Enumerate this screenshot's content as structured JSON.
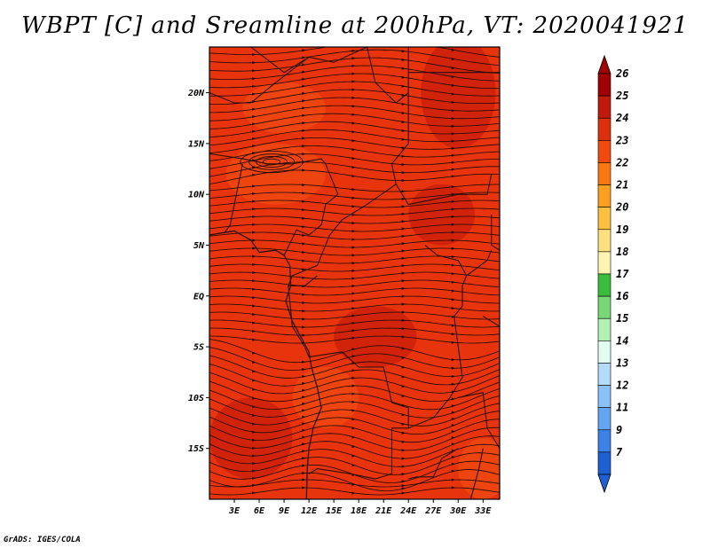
{
  "title": "WBPT [C] and Sreamline at 200hPa, VT: 2020041921",
  "credit": "GrADS: IGES/COLA",
  "map": {
    "lon_range": [
      0,
      35
    ],
    "lat_range": [
      -20,
      24.5
    ],
    "lat_ticks": [
      {
        "value": 20,
        "label": "20N"
      },
      {
        "value": 15,
        "label": "15N"
      },
      {
        "value": 10,
        "label": "10N"
      },
      {
        "value": 5,
        "label": "5N"
      },
      {
        "value": 0,
        "label": "EQ"
      },
      {
        "value": -5,
        "label": "5S"
      },
      {
        "value": -10,
        "label": "10S"
      },
      {
        "value": -15,
        "label": "15S"
      }
    ],
    "lon_ticks": [
      {
        "value": 3,
        "label": "3E"
      },
      {
        "value": 6,
        "label": "6E"
      },
      {
        "value": 9,
        "label": "9E"
      },
      {
        "value": 12,
        "label": "12E"
      },
      {
        "value": 15,
        "label": "15E"
      },
      {
        "value": 18,
        "label": "18E"
      },
      {
        "value": 21,
        "label": "21E"
      },
      {
        "value": 24,
        "label": "24E"
      },
      {
        "value": 27,
        "label": "27E"
      },
      {
        "value": 30,
        "label": "30E"
      },
      {
        "value": 33,
        "label": "33E"
      }
    ],
    "base_color": "#e8340c",
    "warm_color": "#c81e0a",
    "light_color": "#f04a12",
    "streamline_color": "#1a0a05",
    "border_color": "#2b0e08"
  },
  "colorbar": {
    "levels": [
      {
        "label": "26",
        "color": "#a00000"
      },
      {
        "label": "25",
        "color": "#c01a0a"
      },
      {
        "label": "24",
        "color": "#dc300c"
      },
      {
        "label": "23",
        "color": "#f04a10"
      },
      {
        "label": "22",
        "color": "#fa7812"
      },
      {
        "label": "21",
        "color": "#fca020"
      },
      {
        "label": "20",
        "color": "#fec040"
      },
      {
        "label": "19",
        "color": "#fee080"
      },
      {
        "label": "18",
        "color": "#fff4b0"
      },
      {
        "label": "17",
        "color": "#3cbc3c"
      },
      {
        "label": "16",
        "color": "#78d878"
      },
      {
        "label": "15",
        "color": "#b4f0b4"
      },
      {
        "label": "14",
        "color": "#e0fff0"
      },
      {
        "label": "13",
        "color": "#b4dcfa"
      },
      {
        "label": "12",
        "color": "#8cc0f8"
      },
      {
        "label": "11",
        "color": "#64a4f0"
      },
      {
        "label": "9",
        "color": "#3c82e6"
      },
      {
        "label": "7",
        "color": "#1e5fd2"
      }
    ],
    "bottom_color": "#1e5fd2",
    "top_color": "#a00000"
  }
}
